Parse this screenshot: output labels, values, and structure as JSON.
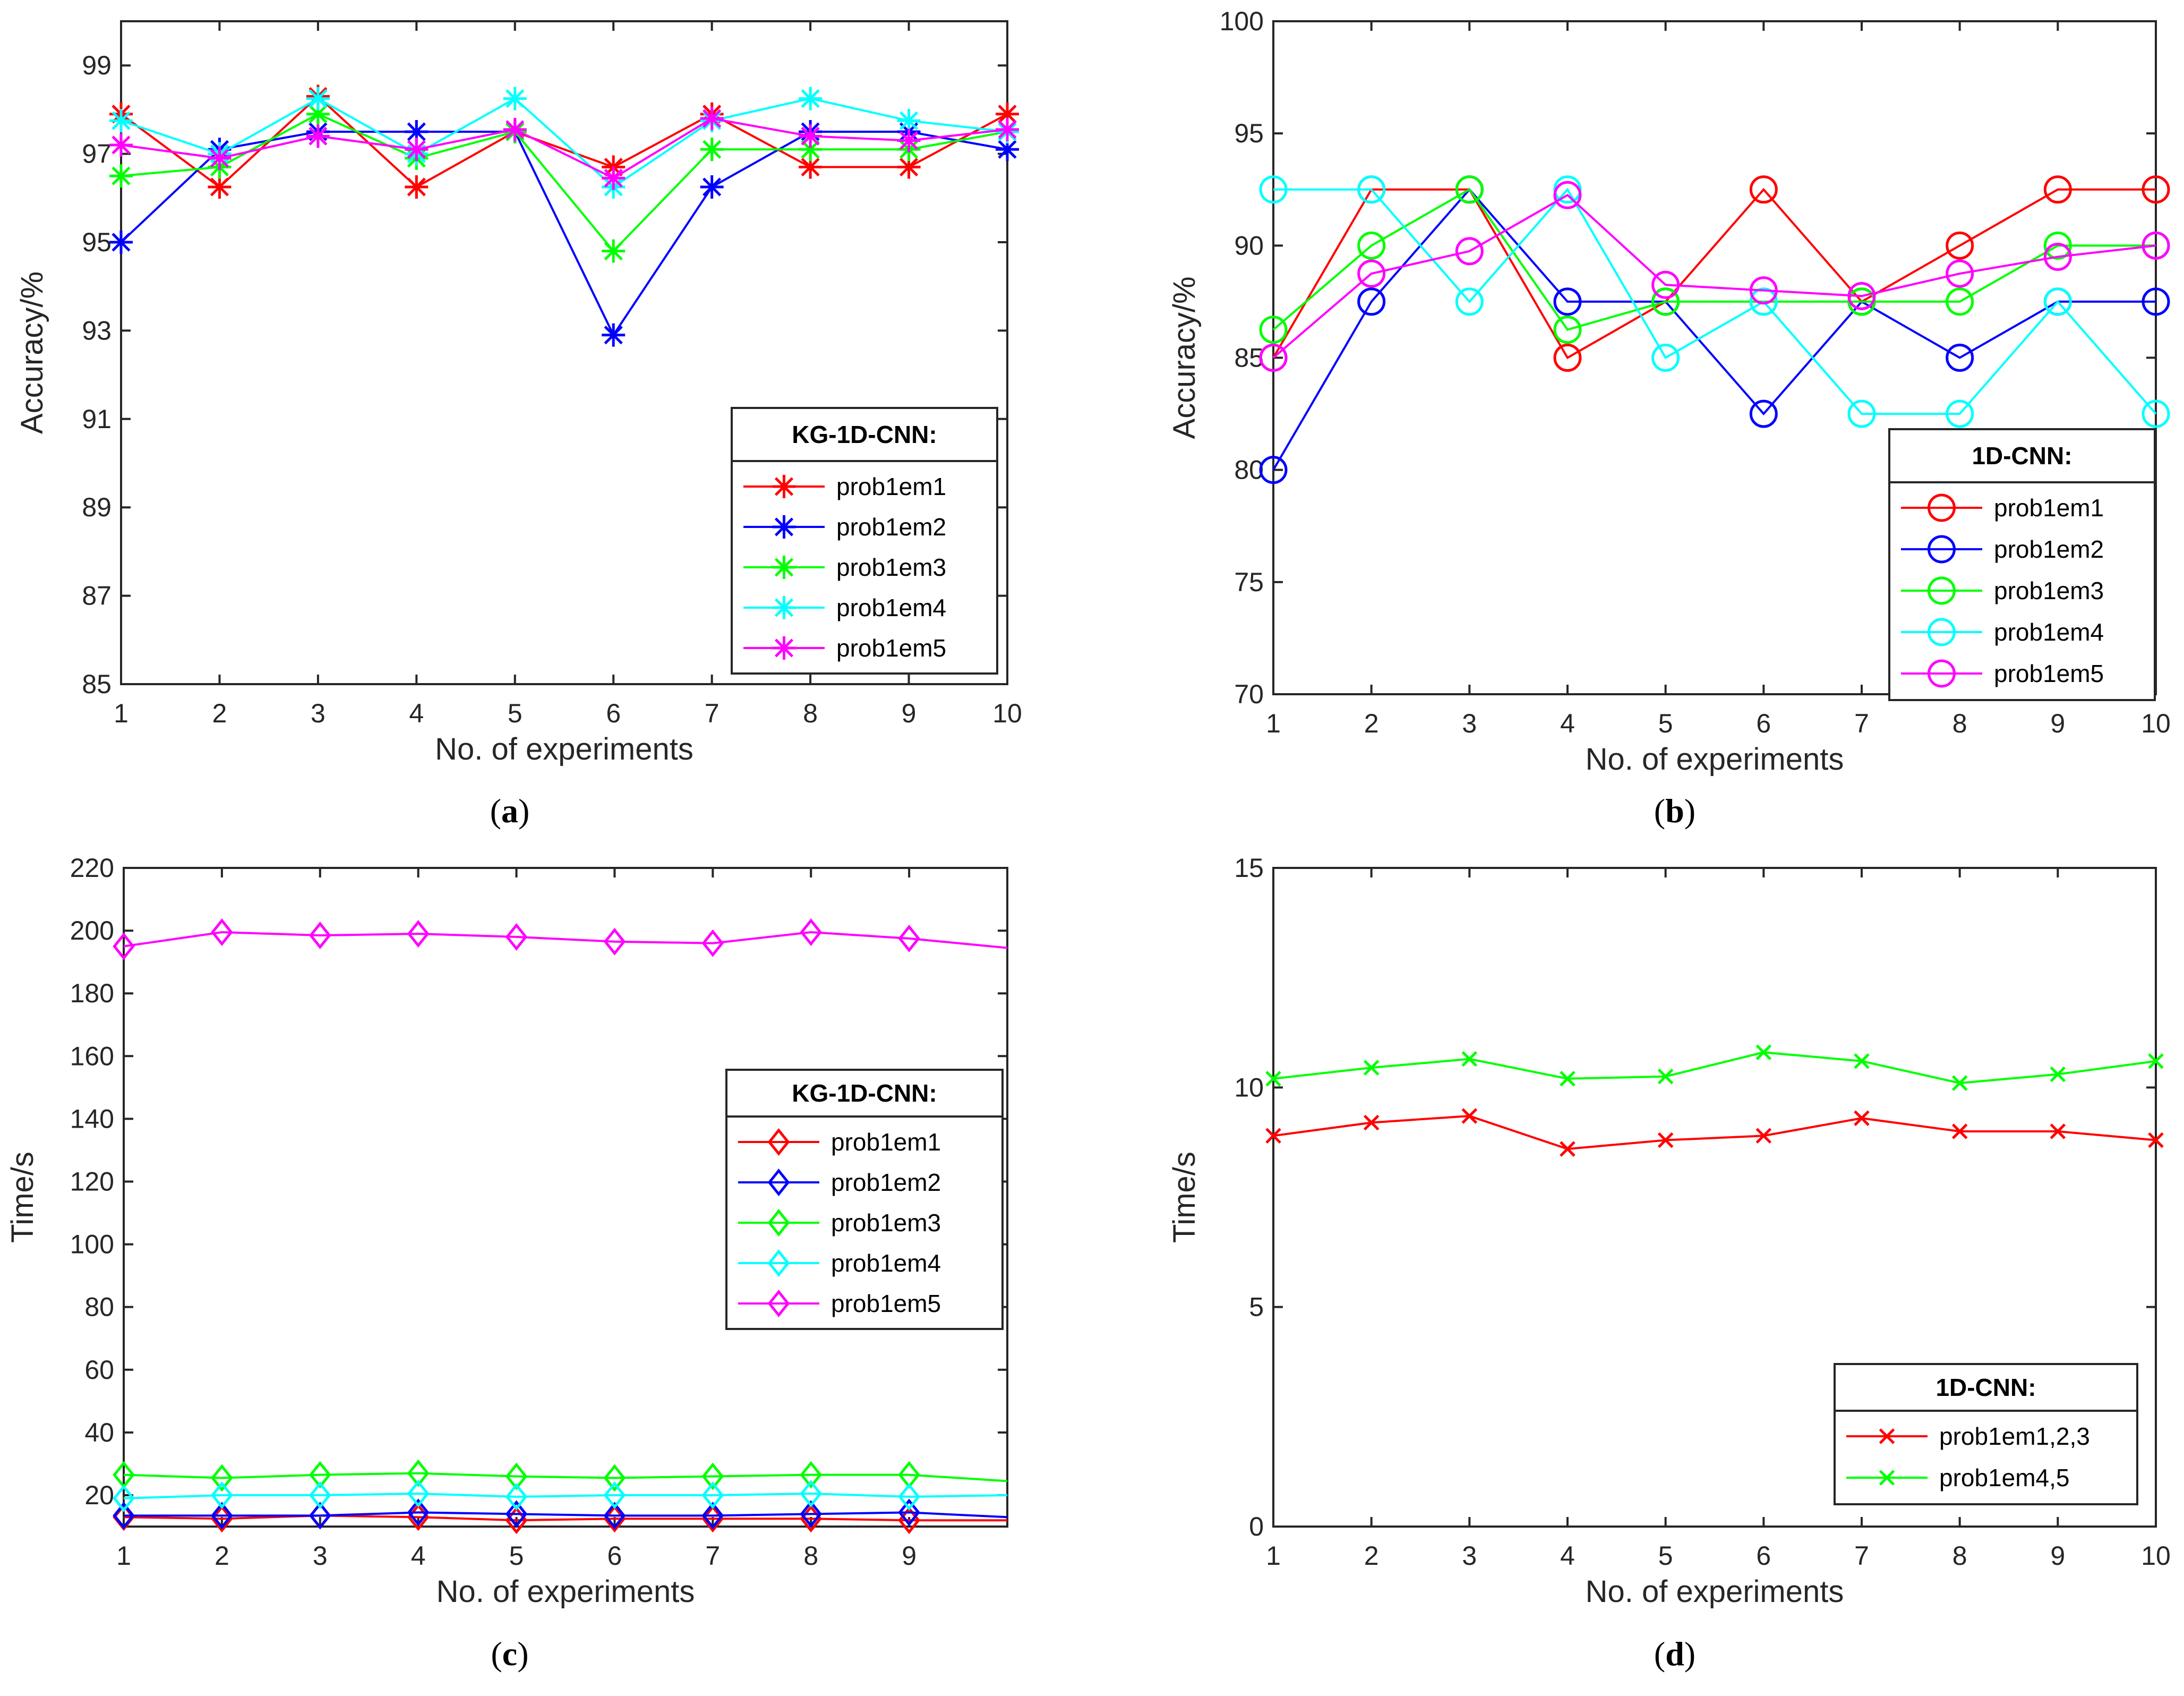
{
  "chart_data": [
    {
      "id": "a",
      "type": "line",
      "caption_letter": "a",
      "xlabel": "No. of experiments",
      "ylabel": "Accuracy/%",
      "xlim": [
        1,
        10
      ],
      "ylim": [
        85,
        100
      ],
      "xticks": [
        1,
        2,
        3,
        4,
        5,
        6,
        7,
        8,
        9,
        10
      ],
      "yticks": [
        85,
        87,
        89,
        91,
        93,
        95,
        97,
        99
      ],
      "marker": "asterisk",
      "legend": {
        "title": "KG-1D-CNN:",
        "position": "center-right"
      },
      "series": [
        {
          "name": "prob1em1",
          "color": "#ff0000",
          "x": [
            1,
            2,
            3,
            4,
            5,
            6,
            7,
            8,
            9,
            10
          ],
          "values": [
            97.9,
            96.25,
            98.3,
            96.25,
            97.5,
            96.7,
            97.9,
            96.7,
            96.7,
            97.9
          ]
        },
        {
          "name": "prob1em2",
          "color": "#0000ff",
          "x": [
            1,
            2,
            3,
            4,
            5,
            6,
            7,
            8,
            9,
            10
          ],
          "values": [
            95.0,
            97.1,
            97.5,
            97.5,
            97.5,
            92.9,
            96.25,
            97.5,
            97.5,
            97.1
          ]
        },
        {
          "name": "prob1em3",
          "color": "#00ff00",
          "x": [
            1,
            2,
            3,
            4,
            5,
            6,
            7,
            8,
            9,
            10
          ],
          "values": [
            96.5,
            96.7,
            97.9,
            96.9,
            97.5,
            94.8,
            97.1,
            97.1,
            97.1,
            97.5
          ]
        },
        {
          "name": "prob1em4",
          "color": "#00ffff",
          "x": [
            1,
            2,
            3,
            4,
            5,
            6,
            7,
            8,
            9,
            10
          ],
          "values": [
            97.75,
            97.0,
            98.25,
            97.0,
            98.25,
            96.25,
            97.75,
            98.25,
            97.75,
            97.5
          ]
        },
        {
          "name": "prob1em5",
          "color": "#ff00ff",
          "x": [
            1,
            2,
            3,
            4,
            5,
            6,
            7,
            8,
            9,
            10
          ],
          "values": [
            97.2,
            96.9,
            97.4,
            97.1,
            97.55,
            96.45,
            97.8,
            97.4,
            97.3,
            97.55
          ]
        }
      ]
    },
    {
      "id": "b",
      "type": "line",
      "caption_letter": "b",
      "xlabel": "No. of experiments",
      "ylabel": "Accuracy/%",
      "xlim": [
        1,
        10
      ],
      "ylim": [
        70,
        100
      ],
      "xticks": [
        1,
        2,
        3,
        4,
        5,
        6,
        7,
        8,
        9,
        10
      ],
      "yticks": [
        70,
        75,
        80,
        85,
        90,
        95,
        100
      ],
      "marker": "circle",
      "legend": {
        "title": "1D-CNN:",
        "position": "bottom-right"
      },
      "series": [
        {
          "name": "prob1em1",
          "color": "#ff0000",
          "x": [
            1,
            2,
            3,
            4,
            5,
            6,
            7,
            8,
            9,
            10
          ],
          "values": [
            85.0,
            92.5,
            92.5,
            85.0,
            87.5,
            92.5,
            87.5,
            90.0,
            92.5,
            92.5
          ]
        },
        {
          "name": "prob1em2",
          "color": "#0000ff",
          "x": [
            1,
            2,
            3,
            4,
            5,
            6,
            7,
            8,
            9,
            10
          ],
          "values": [
            80.0,
            87.5,
            92.5,
            87.5,
            87.5,
            82.5,
            87.5,
            85.0,
            87.5,
            87.5
          ]
        },
        {
          "name": "prob1em3",
          "color": "#00ff00",
          "x": [
            1,
            2,
            3,
            4,
            5,
            6,
            7,
            8,
            9,
            10
          ],
          "values": [
            86.25,
            90.0,
            92.5,
            86.25,
            87.5,
            87.5,
            87.5,
            87.5,
            90.0,
            90.0
          ]
        },
        {
          "name": "prob1em4",
          "color": "#00ffff",
          "x": [
            1,
            2,
            3,
            4,
            5,
            6,
            7,
            8,
            9,
            10
          ],
          "values": [
            92.5,
            92.5,
            87.5,
            92.5,
            85.0,
            87.5,
            82.5,
            82.5,
            87.5,
            82.5
          ]
        },
        {
          "name": "prob1em5",
          "color": "#ff00ff",
          "x": [
            1,
            2,
            3,
            4,
            5,
            6,
            7,
            8,
            9,
            10
          ],
          "values": [
            85.0,
            88.75,
            89.75,
            92.25,
            88.25,
            88.0,
            87.75,
            88.75,
            89.5,
            90.0
          ]
        }
      ]
    },
    {
      "id": "c",
      "type": "line",
      "caption_letter": "c",
      "xlabel": "No. of experiments",
      "ylabel": "Time/s",
      "xlim": [
        1,
        10
      ],
      "ylim": [
        10,
        220
      ],
      "xticks": [
        1,
        2,
        3,
        4,
        5,
        6,
        7,
        8,
        9
      ],
      "yticks": [
        20,
        40,
        60,
        80,
        100,
        120,
        140,
        160,
        180,
        200,
        220
      ],
      "marker": "diamond",
      "legend": {
        "title": "KG-1D-CNN:",
        "position": "center-right"
      },
      "series": [
        {
          "name": "prob1em1",
          "color": "#ff0000",
          "x": [
            1,
            2,
            3,
            4,
            5,
            6,
            7,
            8,
            9,
            10
          ],
          "values": [
            13.0,
            12.5,
            13.5,
            13.0,
            12.0,
            12.5,
            12.5,
            12.5,
            12.0,
            12.0
          ]
        },
        {
          "name": "prob1em2",
          "color": "#0000ff",
          "x": [
            1,
            2,
            3,
            4,
            5,
            6,
            7,
            8,
            9,
            10
          ],
          "values": [
            13.5,
            13.5,
            13.5,
            14.5,
            14.0,
            13.5,
            13.5,
            14.0,
            14.5,
            13.0
          ]
        },
        {
          "name": "prob1em3",
          "color": "#00ff00",
          "x": [
            1,
            2,
            3,
            4,
            5,
            6,
            7,
            8,
            9,
            10
          ],
          "values": [
            26.5,
            25.5,
            26.5,
            27.0,
            26.0,
            25.5,
            26.0,
            26.5,
            26.5,
            24.5
          ]
        },
        {
          "name": "prob1em4",
          "color": "#00ffff",
          "x": [
            1,
            2,
            3,
            4,
            5,
            6,
            7,
            8,
            9,
            10
          ],
          "values": [
            19.0,
            20.0,
            20.0,
            20.5,
            19.5,
            20.0,
            20.0,
            20.5,
            19.5,
            20.0
          ]
        },
        {
          "name": "prob1em5",
          "color": "#ff00ff",
          "x": [
            1,
            2,
            3,
            4,
            5,
            6,
            7,
            8,
            9,
            10
          ],
          "values": [
            195.0,
            199.5,
            198.5,
            199.0,
            198.0,
            196.5,
            196.0,
            199.5,
            197.5,
            194.5
          ]
        }
      ]
    },
    {
      "id": "d",
      "type": "line",
      "caption_letter": "d",
      "xlabel": "No. of experiments",
      "ylabel": "Time/s",
      "xlim": [
        1,
        10
      ],
      "ylim": [
        0,
        15
      ],
      "xticks": [
        1,
        2,
        3,
        4,
        5,
        6,
        7,
        8,
        9,
        10
      ],
      "yticks": [
        0,
        5,
        10,
        15
      ],
      "marker": "x",
      "legend": {
        "title": "1D-CNN:",
        "position": "bottom-right"
      },
      "series": [
        {
          "name": "prob1em1,2,3",
          "color": "#ff0000",
          "x": [
            1,
            2,
            3,
            4,
            5,
            6,
            7,
            8,
            9,
            10
          ],
          "values": [
            8.9,
            9.2,
            9.35,
            8.6,
            8.8,
            8.9,
            9.3,
            9.0,
            9.0,
            8.8
          ]
        },
        {
          "name": "prob1em4,5",
          "color": "#00ff00",
          "x": [
            1,
            2,
            3,
            4,
            5,
            6,
            7,
            8,
            9,
            10
          ],
          "values": [
            10.2,
            10.45,
            10.65,
            10.2,
            10.25,
            10.8,
            10.6,
            10.1,
            10.3,
            10.6
          ]
        }
      ]
    }
  ]
}
